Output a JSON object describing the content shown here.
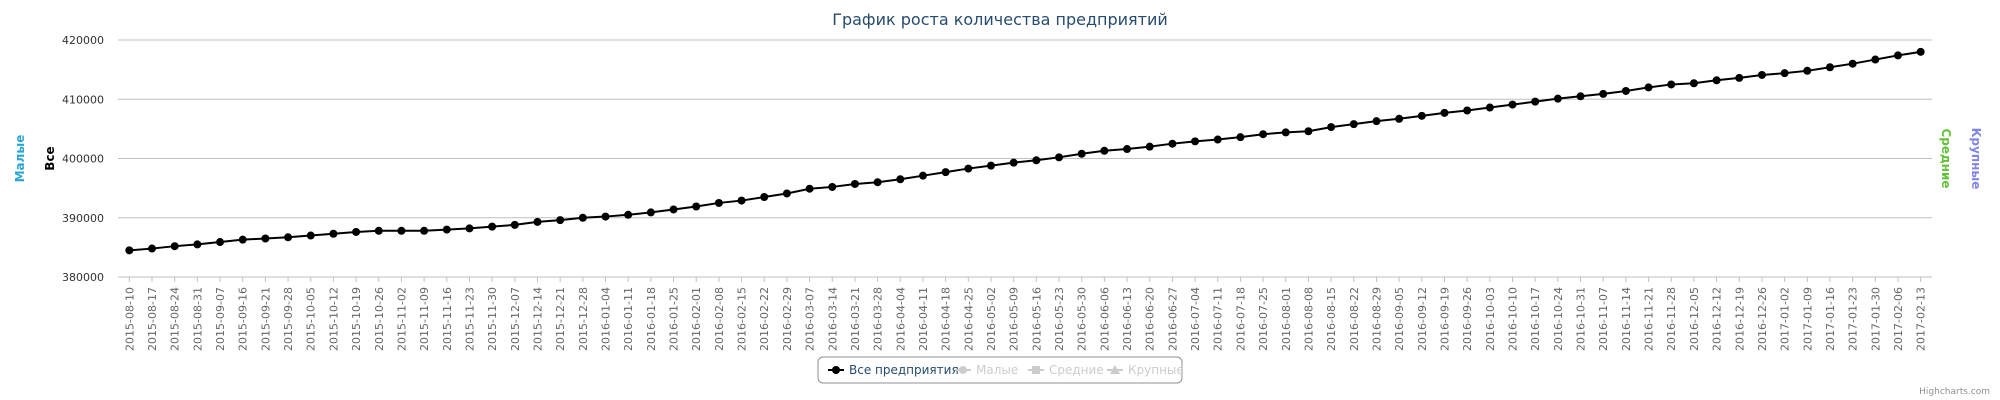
{
  "chart_data": {
    "type": "line",
    "title": "График роста количества предприятий",
    "x": [
      "2015-08-10",
      "2015-08-17",
      "2015-08-24",
      "2015-08-31",
      "2015-09-07",
      "2015-09-16",
      "2015-09-21",
      "2015-09-28",
      "2015-10-05",
      "2015-10-12",
      "2015-10-19",
      "2015-10-26",
      "2015-11-02",
      "2015-11-09",
      "2015-11-16",
      "2015-11-23",
      "2015-11-30",
      "2015-12-07",
      "2015-12-14",
      "2015-12-21",
      "2015-12-28",
      "2016-01-04",
      "2016-01-11",
      "2016-01-18",
      "2016-01-25",
      "2016-02-01",
      "2016-02-08",
      "2016-02-15",
      "2016-02-22",
      "2016-02-29",
      "2016-03-07",
      "2016-03-14",
      "2016-03-21",
      "2016-03-28",
      "2016-04-04",
      "2016-04-11",
      "2016-04-18",
      "2016-04-25",
      "2016-05-02",
      "2016-05-09",
      "2016-05-16",
      "2016-05-23",
      "2016-05-30",
      "2016-06-06",
      "2016-06-13",
      "2016-06-20",
      "2016-06-27",
      "2016-07-04",
      "2016-07-11",
      "2016-07-18",
      "2016-07-25",
      "2016-08-01",
      "2016-08-08",
      "2016-08-15",
      "2016-08-22",
      "2016-08-29",
      "2016-09-05",
      "2016-09-12",
      "2016-09-19",
      "2016-09-26",
      "2016-10-03",
      "2016-10-10",
      "2016-10-17",
      "2016-10-24",
      "2016-10-31",
      "2016-11-07",
      "2016-11-14",
      "2016-11-21",
      "2016-11-28",
      "2016-12-05",
      "2016-12-12",
      "2016-12-19",
      "2016-12-26",
      "2017-01-02",
      "2017-01-09",
      "2017-01-16",
      "2017-01-23",
      "2017-01-30",
      "2017-02-06",
      "2017-02-13"
    ],
    "series": [
      {
        "name": "Все предприятия",
        "visible": true,
        "color": "#000000",
        "values": [
          384500,
          384800,
          385200,
          385500,
          385900,
          386300,
          386500,
          386700,
          387000,
          387300,
          387600,
          387800,
          387800,
          387800,
          388000,
          388200,
          388500,
          388800,
          389300,
          389600,
          390000,
          390200,
          390500,
          390900,
          391400,
          391900,
          392500,
          392900,
          393500,
          394100,
          394900,
          395200,
          395700,
          396000,
          396500,
          397100,
          397700,
          398300,
          398800,
          399300,
          399700,
          400200,
          400800,
          401300,
          401600,
          402000,
          402500,
          402900,
          403200,
          403600,
          404100,
          404400,
          404600,
          405300,
          405800,
          406300,
          406700,
          407200,
          407700,
          408100,
          408600,
          409100,
          409600,
          410100,
          410500,
          410900,
          411400,
          412000,
          412500,
          412700,
          413200,
          413600,
          414100,
          414400,
          414800,
          415400,
          416000,
          416700,
          417400,
          418000
        ]
      },
      {
        "name": "Малые",
        "visible": false,
        "color": "#2aa6d4"
      },
      {
        "name": "Средние",
        "visible": false,
        "color": "#64c23a"
      },
      {
        "name": "Крупные",
        "visible": false,
        "color": "#8085e8"
      }
    ],
    "yticks": [
      380000,
      390000,
      400000,
      410000,
      420000
    ],
    "ylim": [
      380000,
      420000
    ],
    "y_axis_titles": {
      "left_outer": "Малые",
      "left_inner": "Все",
      "right_inner": "Средние",
      "right_outer": "Крупные"
    },
    "grid": true,
    "legend": "bottom-center"
  },
  "credits": "Highcharts.com",
  "colors": {
    "title": "#274b6d",
    "grid": "#c0c0c0",
    "legend_active": "#274b6d",
    "legend_inactive": "#cccccc",
    "left_outer_axis": "#2aa6d4",
    "left_inner_axis": "#000000",
    "right_inner_axis": "#64c23a",
    "right_outer_axis": "#8085e8"
  }
}
